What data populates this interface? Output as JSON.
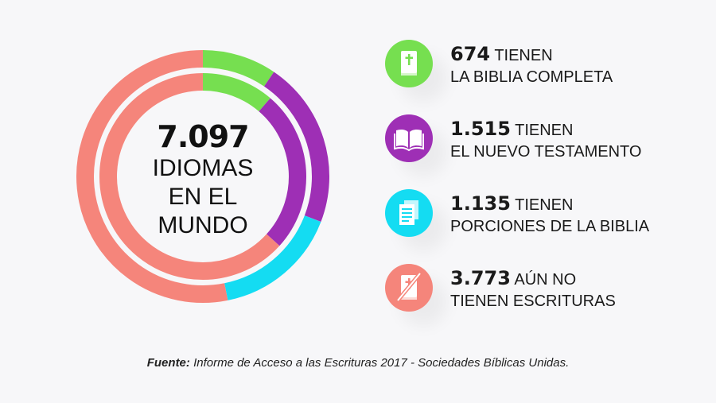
{
  "chart_data": {
    "type": "pie",
    "center": {
      "number": "7.097",
      "label_lines": [
        "IDIOMAS",
        "EN EL",
        "MUNDO"
      ]
    },
    "outer_ring": [
      {
        "value": 674,
        "color": "#76df50"
      },
      {
        "value": 1515,
        "color": "#9e2fb5"
      },
      {
        "value": 1135,
        "color": "#14dcf2"
      },
      {
        "value": 3773,
        "color": "#f5857b"
      }
    ],
    "inner_ring": [
      {
        "value": 674,
        "color": "#76df50"
      },
      {
        "value": 1515,
        "color": "#9e2fb5"
      },
      {
        "value": 3773,
        "color": "#f5857b"
      }
    ]
  },
  "legend": [
    {
      "number": "674",
      "rest": "TIENEN",
      "line2": "LA BIBLIA COMPLETA",
      "color": "#76df50",
      "icon": "bible-icon"
    },
    {
      "number": "1.515",
      "rest": "TIENEN",
      "line2": "EL NUEVO TESTAMENTO",
      "color": "#9e2fb5",
      "icon": "open-book-icon"
    },
    {
      "number": "1.135",
      "rest": "TIENEN",
      "line2": "PORCIONES DE LA BIBLIA",
      "color": "#14dcf2",
      "icon": "document-pages-icon"
    },
    {
      "number": "3.773",
      "rest": "AÚN NO",
      "line2": "TIENEN ESCRITURAS",
      "color": "#f5857b",
      "icon": "crossed-bible-icon"
    }
  ],
  "footer": {
    "label": "Fuente:",
    "text": " Informe de Acceso a las Escrituras 2017 - Sociedades Bíblicas Unidas."
  }
}
